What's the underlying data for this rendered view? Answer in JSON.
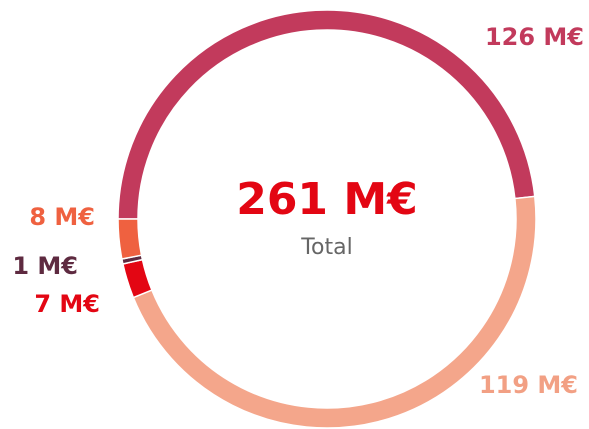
{
  "chart_data": {
    "type": "donut",
    "categories": [
      null,
      null,
      null,
      null,
      null
    ],
    "values": [
      126,
      119,
      7,
      1,
      8
    ],
    "value_labels": [
      "126 M€",
      "119 M€",
      "7 M€",
      "1 M€",
      "8 M€"
    ],
    "colors": [
      "#c23a5c",
      "#f4a68b",
      "#e30613",
      "#5e2a40",
      "#ef6140"
    ],
    "label_colors": [
      "#c23a5c",
      "#f2a084",
      "#e30613",
      "#5e2a40",
      "#ef6140"
    ],
    "center_label": "261 M€",
    "center_caption": "Total"
  }
}
